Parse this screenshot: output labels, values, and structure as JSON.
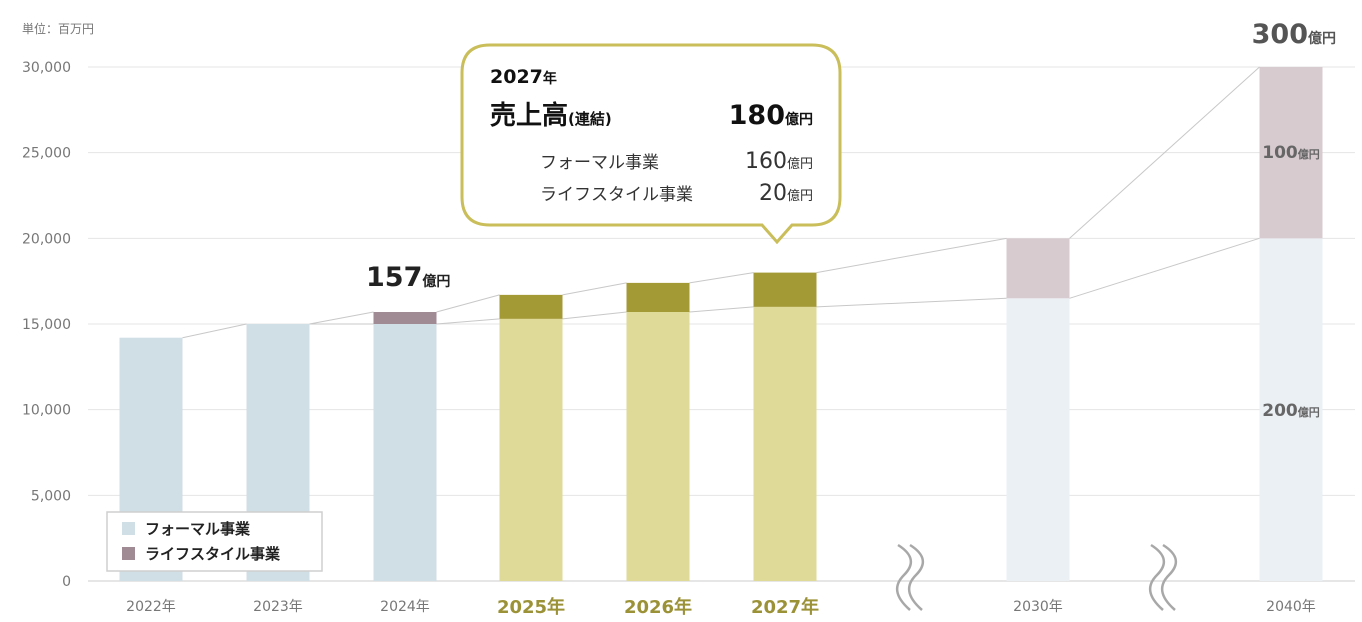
{
  "chart_data": {
    "type": "bar",
    "stacked": true,
    "unit_label": "単位：百万円",
    "y_ticks": [
      0,
      5000,
      10000,
      15000,
      20000,
      25000,
      30000
    ],
    "y_tick_labels": [
      "0",
      "5,000",
      "10,000",
      "15,000",
      "20,000",
      "25,000",
      "30,000"
    ],
    "ylim": [
      0,
      30000
    ],
    "grid": true,
    "categories": [
      "2022年",
      "2023年",
      "2024年",
      "2025年",
      "2026年",
      "2027年",
      "2030年",
      "2040年"
    ],
    "highlighted_categories": [
      "2025年",
      "2026年",
      "2027年"
    ],
    "series": [
      {
        "name": "フォーマル事業",
        "values": [
          14200,
          15000,
          15000,
          15300,
          15700,
          16000,
          16500,
          20000
        ]
      },
      {
        "name": "ライフスタイル事業",
        "values": [
          0,
          0,
          700,
          1400,
          1700,
          2000,
          3500,
          10000
        ]
      }
    ],
    "legend": {
      "placement": "bottom-left",
      "items": [
        "フォーマル事業",
        "ライフスタイル事業"
      ]
    },
    "annotations": {
      "y2024_total": {
        "value": "157",
        "unit": "億円"
      },
      "y2040_total": {
        "value": "300",
        "unit": "億円"
      },
      "y2040_lifestyle": {
        "value": "100",
        "unit": "億円"
      },
      "y2040_formal": {
        "value": "200",
        "unit": "億円"
      }
    },
    "callout": {
      "year": "2027",
      "year_suffix": "年",
      "title": "売上高",
      "title_suffix": "(連結)",
      "total_value": "180",
      "total_unit": "億円",
      "rows": [
        {
          "label": "フォーマル事業",
          "value": "160",
          "unit": "億円"
        },
        {
          "label": "ライフスタイル事業",
          "value": "20",
          "unit": "億円"
        }
      ]
    },
    "colors": {
      "formal_actual": "#d0dee5",
      "lifestyle_actual": "#a08a94",
      "formal_plan": "#dfda98",
      "lifestyle_plan": "#a49a35",
      "formal_target": "#ebf0f4",
      "lifestyle_target": "#d7cbd0",
      "callout_border": "#c9be5a",
      "highlight_text": "#9b9137"
    }
  }
}
